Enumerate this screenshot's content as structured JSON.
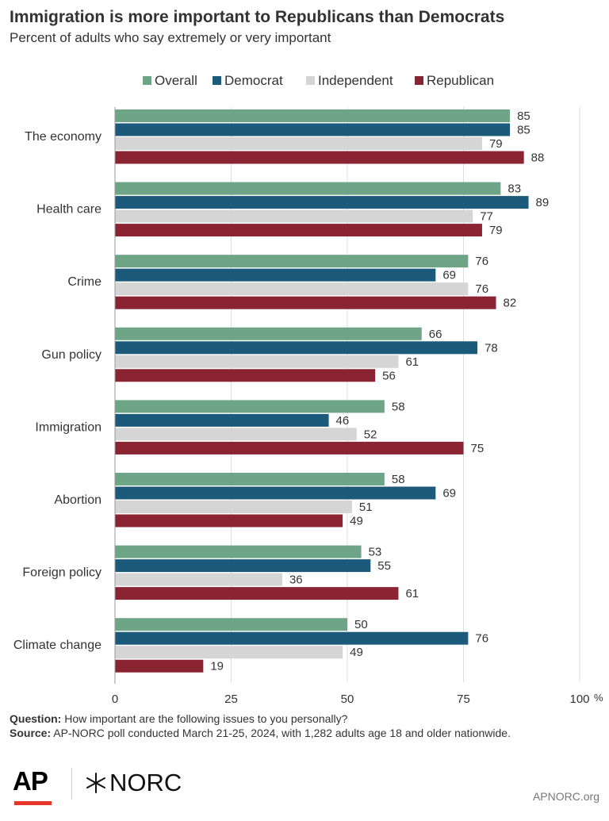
{
  "header": {
    "title": "Immigration is more important to Republicans than Democrats",
    "subtitle": "Percent of adults who say extremely or very important"
  },
  "chart_data": {
    "type": "bar",
    "orientation": "horizontal",
    "categories": [
      "The economy",
      "Health care",
      "Crime",
      "Gun policy",
      "Immigration",
      "Abortion",
      "Foreign policy",
      "Climate change"
    ],
    "series": [
      {
        "name": "Overall",
        "color": "#6fa587",
        "values": [
          85,
          83,
          76,
          66,
          58,
          58,
          53,
          50
        ]
      },
      {
        "name": "Democrat",
        "color": "#1b5a7a",
        "values": [
          85,
          89,
          69,
          78,
          46,
          69,
          55,
          76
        ]
      },
      {
        "name": "Independent",
        "color": "#d5d5d5",
        "values": [
          79,
          77,
          76,
          61,
          52,
          51,
          36,
          49
        ]
      },
      {
        "name": "Republican",
        "color": "#8a2432",
        "values": [
          88,
          79,
          82,
          56,
          75,
          49,
          61,
          19
        ]
      }
    ],
    "xlim": [
      0,
      100
    ],
    "x_ticks": [
      "0",
      "25",
      "50",
      "75",
      "100"
    ],
    "x_unit": "%",
    "grid": true,
    "legend_position": "top"
  },
  "notes": {
    "question_label": "Question:",
    "question_text": "How important are the following issues to you personally?",
    "source_label": "Source:",
    "source_text": "AP-NORC poll conducted March 21-25, 2024, with 1,282 adults age 18 and older nationwide."
  },
  "branding": {
    "ap_logo": "AP",
    "norc_logo": "NORC",
    "site": "APNORC.org"
  }
}
